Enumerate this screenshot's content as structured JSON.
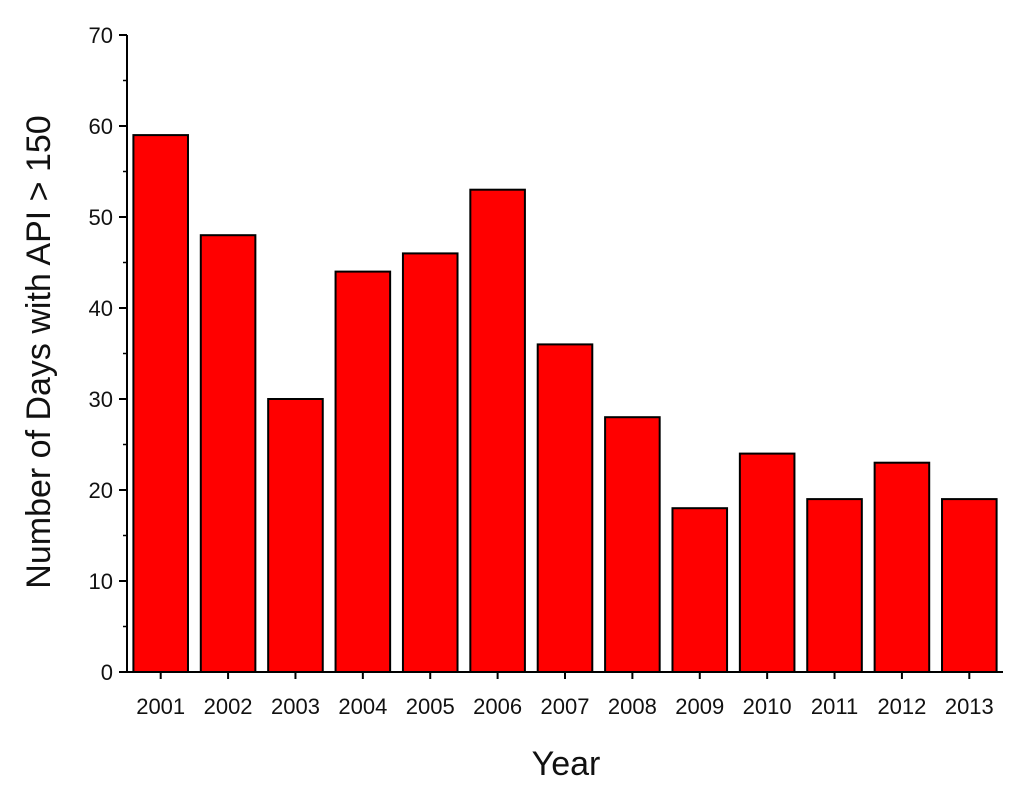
{
  "chart_data": {
    "type": "bar",
    "title": "",
    "xlabel": "Year",
    "ylabel": "Number of Days with API > 150",
    "categories": [
      "2001",
      "2002",
      "2003",
      "2004",
      "2005",
      "2006",
      "2007",
      "2008",
      "2009",
      "2010",
      "2011",
      "2012",
      "2013"
    ],
    "series": [
      {
        "values": [
          59,
          48,
          30,
          44,
          46,
          53,
          36,
          28,
          18,
          24,
          19,
          23,
          19
        ]
      }
    ],
    "ylim": [
      0,
      70
    ],
    "yticks": [
      0,
      10,
      20,
      30,
      40,
      50,
      60,
      70
    ],
    "grid": false,
    "legend": "none",
    "colors": {
      "bar_fill": "#ff0000",
      "bar_stroke": "#000000",
      "axis": "#000000"
    }
  }
}
